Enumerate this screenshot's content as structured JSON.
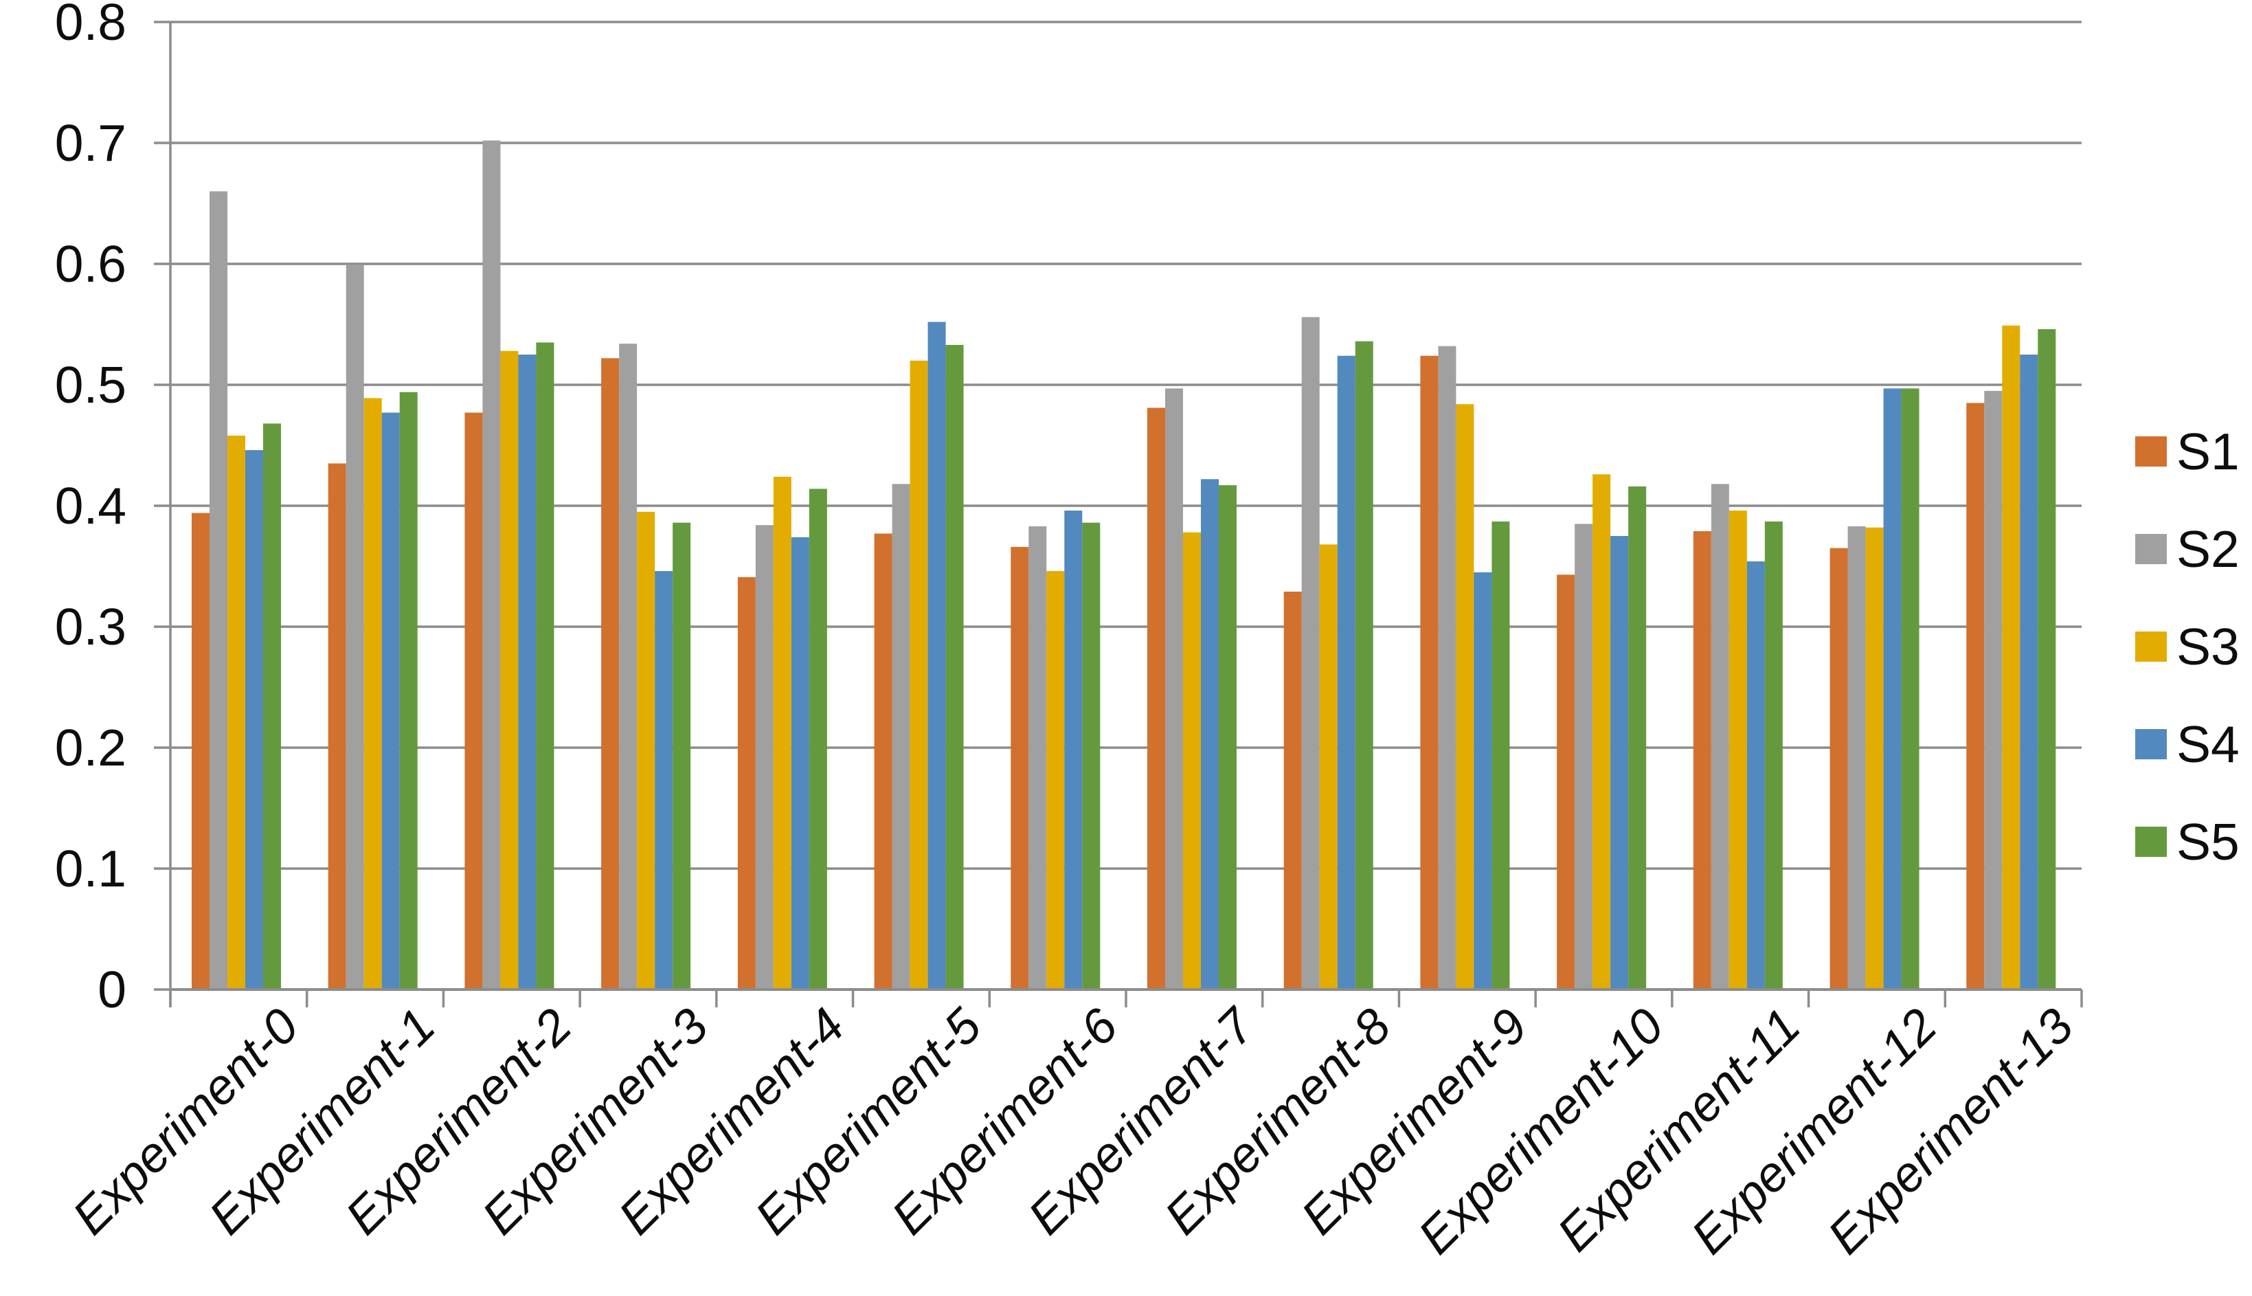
{
  "chart_data": {
    "type": "bar",
    "title": "",
    "xlabel": "",
    "ylabel": "",
    "categories": [
      "Experiment-0",
      "Experiment-1",
      "Experiment-2",
      "Experiment-3",
      "Experiment-4",
      "Experiment-5",
      "Experiment-6",
      "Experiment-7",
      "Experiment-8",
      "Experiment-9",
      "Experiment-10",
      "Experiment-11",
      "Experiment-12",
      "Experiment-13"
    ],
    "series": [
      {
        "name": "S1",
        "color": "#D2702E",
        "values": [
          0.394,
          0.435,
          0.477,
          0.522,
          0.341,
          0.377,
          0.366,
          0.481,
          0.329,
          0.524,
          0.343,
          0.379,
          0.365,
          0.485
        ]
      },
      {
        "name": "S2",
        "color": "#A0A0A0",
        "values": [
          0.66,
          0.599,
          0.702,
          0.534,
          0.384,
          0.418,
          0.383,
          0.497,
          0.556,
          0.532,
          0.385,
          0.418,
          0.383,
          0.495
        ]
      },
      {
        "name": "S3",
        "color": "#E2AD00",
        "values": [
          0.458,
          0.489,
          0.528,
          0.395,
          0.424,
          0.52,
          0.346,
          0.378,
          0.368,
          0.484,
          0.426,
          0.396,
          0.382,
          0.549
        ]
      },
      {
        "name": "S4",
        "color": "#5289BE",
        "values": [
          0.446,
          0.477,
          0.525,
          0.346,
          0.374,
          0.552,
          0.396,
          0.422,
          0.524,
          0.345,
          0.375,
          0.354,
          0.497,
          0.525
        ]
      },
      {
        "name": "S5",
        "color": "#649A3D",
        "values": [
          0.468,
          0.494,
          0.535,
          0.386,
          0.414,
          0.533,
          0.386,
          0.417,
          0.536,
          0.387,
          0.416,
          0.387,
          0.497,
          0.546
        ]
      }
    ],
    "ylim": [
      0,
      0.8
    ],
    "ytick_step": 0.1,
    "ytick_labels": [
      "0",
      "0.1",
      "0.2",
      "0.3",
      "0.4",
      "0.5",
      "0.6",
      "0.7",
      "0.8"
    ],
    "grid": "horizontal",
    "legend_position": "right",
    "colors": {
      "axis": "#8C8C8C",
      "gridline": "#8C8C8C",
      "tick_text": "#0D0D0D",
      "background": "#FFFFFF"
    }
  }
}
